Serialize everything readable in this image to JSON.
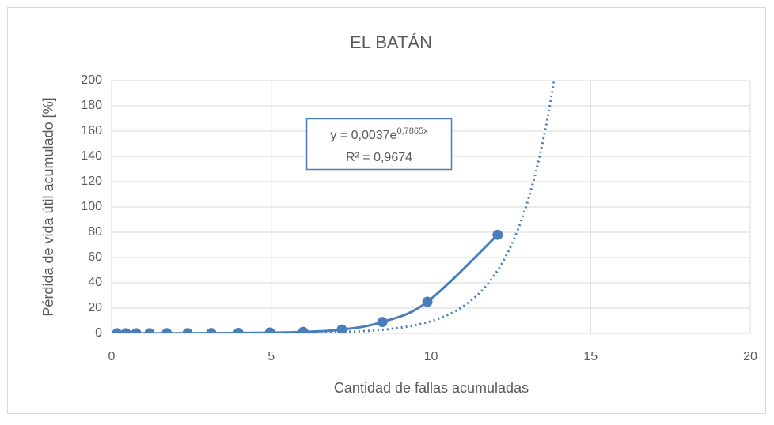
{
  "chart_data": {
    "type": "scatter",
    "title": "EL BATÁN",
    "xlabel": "Cantidad de fallas acumuladas",
    "ylabel": "Pérdida de vida útil acumulado [%]",
    "series": [
      {
        "color": "#4a7ebb",
        "x": [
          0.17,
          0.45,
          0.77,
          1.19,
          1.73,
          2.38,
          3.12,
          3.97,
          4.96,
          6.0,
          7.21,
          8.48,
          9.89,
          12.09
        ],
        "values": [
          0.05,
          0.06,
          0.08,
          0.1,
          0.13,
          0.18,
          0.25,
          0.35,
          0.6,
          1.2,
          3,
          9,
          25,
          78
        ]
      }
    ],
    "trendline": {
      "a": 0.0037,
      "b": 0.7865,
      "r2": 0.9674,
      "equation": "y = 0,0037e",
      "exponent": "0,7865x",
      "r2_label": "R² = 0,9674"
    },
    "xlim": [
      0,
      20
    ],
    "xticks": [
      0,
      5,
      10,
      15,
      20
    ],
    "ylim": [
      0,
      200
    ],
    "yticks": [
      0,
      20,
      40,
      60,
      80,
      100,
      120,
      140,
      160,
      180,
      200
    ],
    "grid": true
  }
}
